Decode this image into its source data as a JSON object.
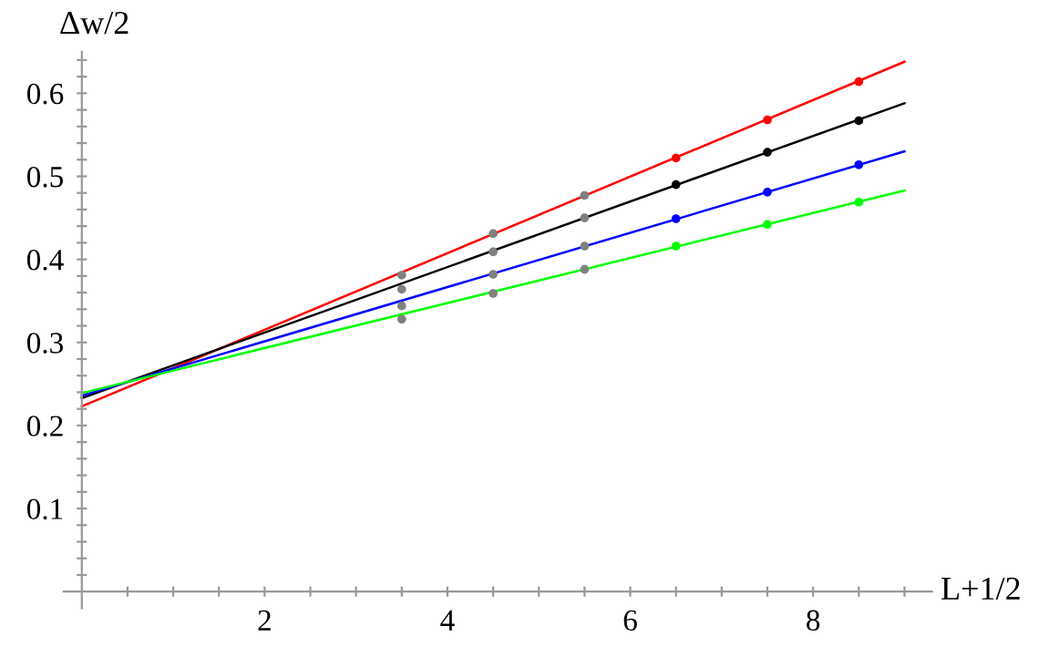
{
  "chart_data": {
    "type": "scatter",
    "xlabel": "L+1/2",
    "ylabel": "Δw/2",
    "xlim": [
      -0.2,
      9.3
    ],
    "ylim": [
      -0.02,
      0.65
    ],
    "xticks": [
      {
        "value": 0.5,
        "label": null
      },
      {
        "value": 1,
        "label": null
      },
      {
        "value": 1.5,
        "label": null
      },
      2,
      {
        "value": 2.5,
        "label": null
      },
      {
        "value": 3,
        "label": null
      },
      {
        "value": 3.5,
        "label": null
      },
      4,
      {
        "value": 4.5,
        "label": null
      },
      {
        "value": 5,
        "label": null
      },
      {
        "value": 5.5,
        "label": null
      },
      6,
      {
        "value": 6.5,
        "label": null
      },
      {
        "value": 7,
        "label": null
      },
      {
        "value": 7.5,
        "label": null
      },
      8,
      {
        "value": 8.5,
        "label": null
      },
      {
        "value": 9,
        "label": null
      }
    ],
    "yticks": [
      {
        "value": 0.02,
        "label": null
      },
      {
        "value": 0.04,
        "label": null
      },
      {
        "value": 0.06,
        "label": null
      },
      {
        "value": 0.08,
        "label": null
      },
      0.1,
      {
        "value": 0.12,
        "label": null
      },
      {
        "value": 0.14,
        "label": null
      },
      {
        "value": 0.16,
        "label": null
      },
      {
        "value": 0.18,
        "label": null
      },
      0.2,
      {
        "value": 0.22,
        "label": null
      },
      {
        "value": 0.24,
        "label": null
      },
      {
        "value": 0.26,
        "label": null
      },
      {
        "value": 0.28,
        "label": null
      },
      0.3,
      {
        "value": 0.32,
        "label": null
      },
      {
        "value": 0.34,
        "label": null
      },
      {
        "value": 0.36,
        "label": null
      },
      {
        "value": 0.38,
        "label": null
      },
      0.4,
      {
        "value": 0.42,
        "label": null
      },
      {
        "value": 0.44,
        "label": null
      },
      {
        "value": 0.46,
        "label": null
      },
      {
        "value": 0.48,
        "label": null
      },
      0.5,
      {
        "value": 0.52,
        "label": null
      },
      {
        "value": 0.54,
        "label": null
      },
      {
        "value": 0.56,
        "label": null
      },
      {
        "value": 0.58,
        "label": null
      },
      0.6,
      {
        "value": 0.62,
        "label": null
      },
      {
        "value": 0.64,
        "label": null
      }
    ],
    "grid": false,
    "legend": false,
    "series": [
      {
        "type": "line",
        "marker": "none",
        "color": "#ff0000",
        "x": [
          0,
          9
        ],
        "values": [
          0.223,
          0.638
        ]
      },
      {
        "type": "line",
        "marker": "none",
        "color": "#000000",
        "x": [
          0,
          9
        ],
        "values": [
          0.233,
          0.588
        ]
      },
      {
        "type": "line",
        "marker": "none",
        "color": "#0000ff",
        "x": [
          0,
          9
        ],
        "values": [
          0.236,
          0.53
        ]
      },
      {
        "type": "line",
        "marker": "none",
        "color": "#00ff00",
        "x": [
          0,
          9
        ],
        "values": [
          0.239,
          0.483
        ]
      },
      {
        "marker": "circle",
        "x": [
          3.5,
          4.5,
          5.5,
          6.5,
          7.5,
          8.5
        ],
        "values": [
          0.381,
          0.431,
          0.477,
          0.522,
          0.568,
          0.614
        ],
        "colors": [
          "#808080",
          "#808080",
          "#808080",
          "#ff0000",
          "#ff0000",
          "#ff0000"
        ]
      },
      {
        "marker": "circle",
        "x": [
          3.5,
          4.5,
          5.5,
          6.5,
          7.5,
          8.5
        ],
        "values": [
          0.364,
          0.409,
          0.45,
          0.49,
          0.529,
          0.567
        ],
        "colors": [
          "#808080",
          "#808080",
          "#808080",
          "#000000",
          "#000000",
          "#000000"
        ]
      },
      {
        "marker": "circle",
        "x": [
          3.5,
          4.5,
          5.5,
          6.5,
          7.5,
          8.5
        ],
        "values": [
          0.344,
          0.382,
          0.416,
          0.449,
          0.481,
          0.514
        ],
        "colors": [
          "#808080",
          "#808080",
          "#808080",
          "#0000ff",
          "#0000ff",
          "#0000ff"
        ]
      },
      {
        "marker": "circle",
        "x": [
          3.5,
          4.5,
          5.5,
          6.5,
          7.5,
          8.5
        ],
        "values": [
          0.328,
          0.359,
          0.388,
          0.416,
          0.442,
          0.469
        ],
        "colors": [
          "#808080",
          "#808080",
          "#808080",
          "#00ff00",
          "#00ff00",
          "#00ff00"
        ]
      }
    ]
  }
}
